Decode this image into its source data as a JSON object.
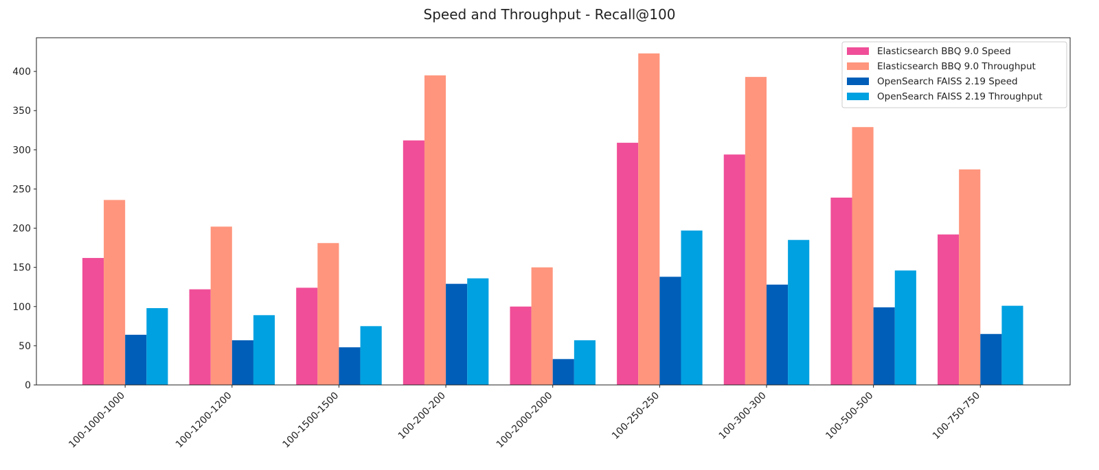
{
  "chart_data": {
    "type": "bar",
    "title": "Speed and Throughput - Recall@100",
    "xlabel": "",
    "ylabel": "",
    "ylim": [
      0,
      443
    ],
    "yticks": [
      0,
      50,
      100,
      150,
      200,
      250,
      300,
      350,
      400
    ],
    "grid": false,
    "legend_position": "top-right",
    "categories": [
      "100-1000-1000",
      "100-1200-1200",
      "100-1500-1500",
      "100-200-200",
      "100-2000-2000",
      "100-250-250",
      "100-300-300",
      "100-500-500",
      "100-750-750"
    ],
    "series": [
      {
        "name": "Elasticsearch BBQ 9.0 Speed",
        "color": "#f04e98",
        "values": [
          162,
          122,
          124,
          312,
          100,
          309,
          294,
          239,
          192
        ]
      },
      {
        "name": "Elasticsearch BBQ 9.0 Throughput",
        "color": "#ff957d",
        "values": [
          236,
          202,
          181,
          395,
          150,
          423,
          393,
          329,
          275
        ]
      },
      {
        "name": "OpenSearch FAISS 2.19 Speed",
        "color": "#005eb8",
        "values": [
          64,
          57,
          48,
          129,
          33,
          138,
          128,
          99,
          65
        ]
      },
      {
        "name": "OpenSearch FAISS 2.19 Throughput",
        "color": "#00a1e0",
        "values": [
          98,
          89,
          75,
          136,
          57,
          197,
          185,
          146,
          101
        ]
      }
    ]
  }
}
